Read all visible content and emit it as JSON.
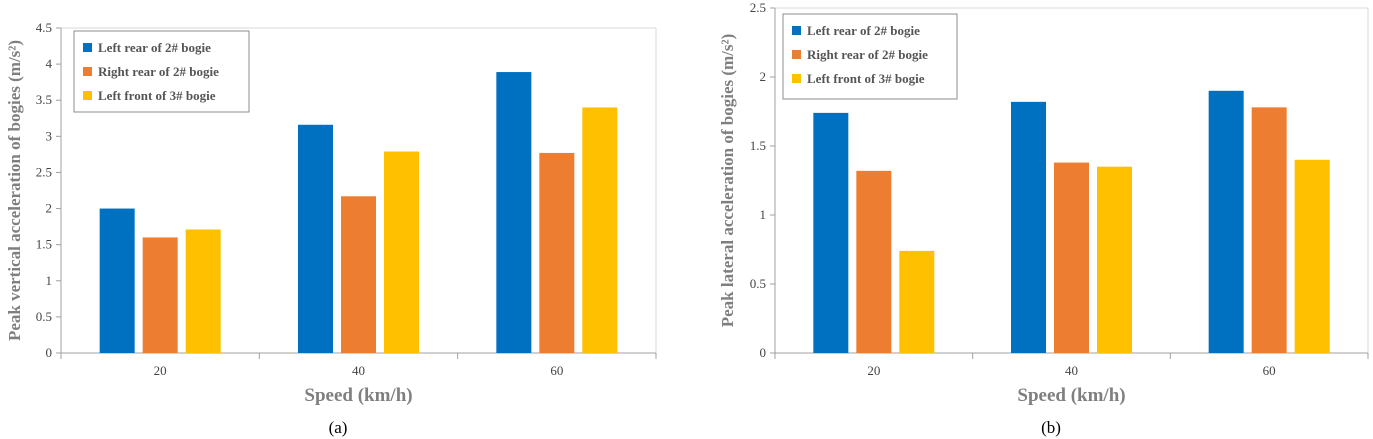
{
  "colors": {
    "series": [
      "#0070C0",
      "#ED7D31",
      "#FFC000"
    ],
    "axis": "#a0a0a0",
    "title": "#7f7f7f"
  },
  "chart_data": [
    {
      "type": "bar",
      "caption": "(a)",
      "categories": [
        "20",
        "40",
        "60"
      ],
      "xlabel": "Speed (km/h)",
      "ylabel": "Peak vertical acceleration of bogies (m/s²)",
      "ylim": [
        0,
        4.5
      ],
      "yticks": [
        "0",
        "0.5",
        "1",
        "1.5",
        "2",
        "2.5",
        "3",
        "3.5",
        "4",
        "4.5"
      ],
      "grid": false,
      "legend_position": "top-left",
      "series": [
        {
          "name": "Left rear of 2# bogie",
          "values": [
            2.0,
            3.16,
            3.89
          ]
        },
        {
          "name": "Right rear of 2# bogie",
          "values": [
            1.6,
            2.17,
            2.77
          ]
        },
        {
          "name": "Left front of 3# bogie",
          "values": [
            1.71,
            2.79,
            3.4
          ]
        }
      ]
    },
    {
      "type": "bar",
      "caption": "(b)",
      "categories": [
        "20",
        "40",
        "60"
      ],
      "xlabel": "Speed (km/h)",
      "ylabel": "Peak lateral acceleration of bogies (m/s²)",
      "ylim": [
        0,
        2.5
      ],
      "yticks": [
        "0",
        "0.5",
        "1",
        "1.5",
        "2",
        "2.5"
      ],
      "grid": false,
      "legend_position": "top-left",
      "series": [
        {
          "name": "Left rear of 2# bogie",
          "values": [
            1.74,
            1.82,
            1.9
          ]
        },
        {
          "name": "Right rear of 2# bogie",
          "values": [
            1.32,
            1.38,
            1.78
          ]
        },
        {
          "name": "Left front of 3# bogie",
          "values": [
            0.74,
            1.35,
            1.4
          ]
        }
      ]
    }
  ]
}
